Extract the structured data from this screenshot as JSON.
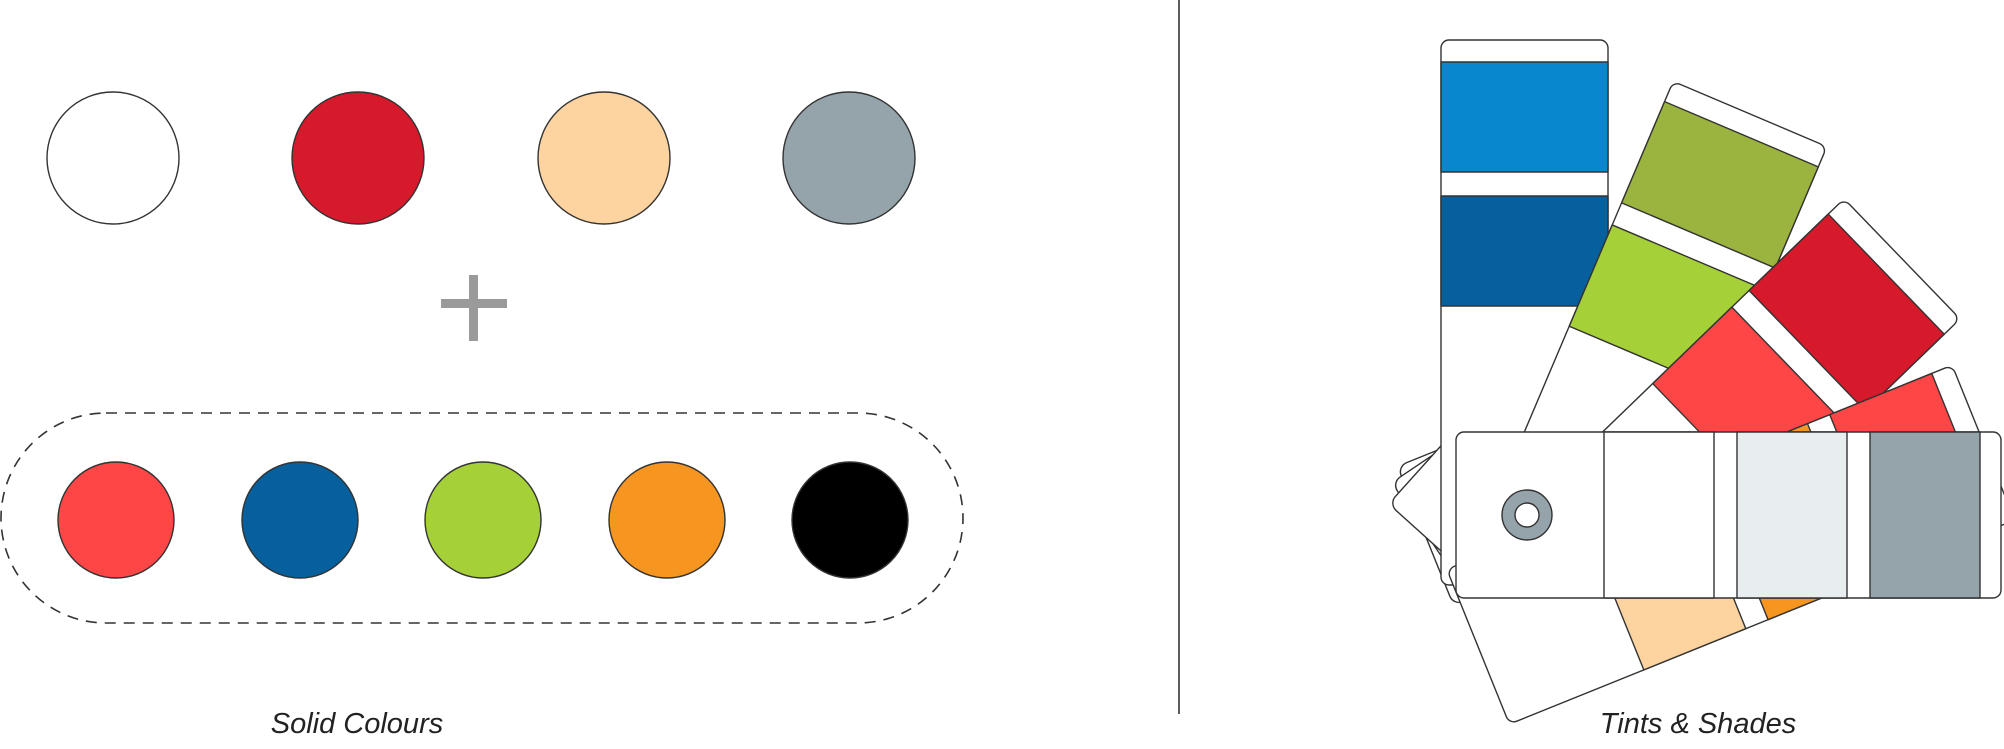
{
  "captions": {
    "left": "Solid Colours",
    "right": "Tints & Shades"
  },
  "solid_colours": {
    "primary": [
      {
        "name": "white",
        "color": "#FFFFFF"
      },
      {
        "name": "red",
        "color": "#D7192C"
      },
      {
        "name": "peach",
        "color": "#FDD3A0"
      },
      {
        "name": "grey",
        "color": "#95A3AA"
      }
    ],
    "plus_icon": "plus-icon",
    "accent": [
      {
        "name": "coral",
        "color": "#FF4646"
      },
      {
        "name": "navy-blue",
        "color": "#06609E"
      },
      {
        "name": "lime",
        "color": "#A6D038"
      },
      {
        "name": "orange",
        "color": "#F6951F"
      },
      {
        "name": "black",
        "color": "#000000"
      }
    ]
  },
  "swatch_fan": {
    "cards": [
      {
        "name": "blue-card",
        "colors": [
          "#0887CE",
          "#06609E"
        ]
      },
      {
        "name": "green-card",
        "colors": [
          "#9BB43F",
          "#A6D038"
        ]
      },
      {
        "name": "red-card",
        "colors": [
          "#D7192C",
          "#FF4646"
        ]
      },
      {
        "name": "orange-card",
        "colors": [
          "#FF4646",
          "#F6951F",
          "#FDD3A0"
        ]
      },
      {
        "name": "grey-card",
        "colors": [
          "#FFFFFF",
          "#E8EEF0",
          "#95A3AA"
        ]
      }
    ],
    "rivet_color": "#95A3AA"
  },
  "divider_color": "#333333",
  "outline_color": "#333333"
}
